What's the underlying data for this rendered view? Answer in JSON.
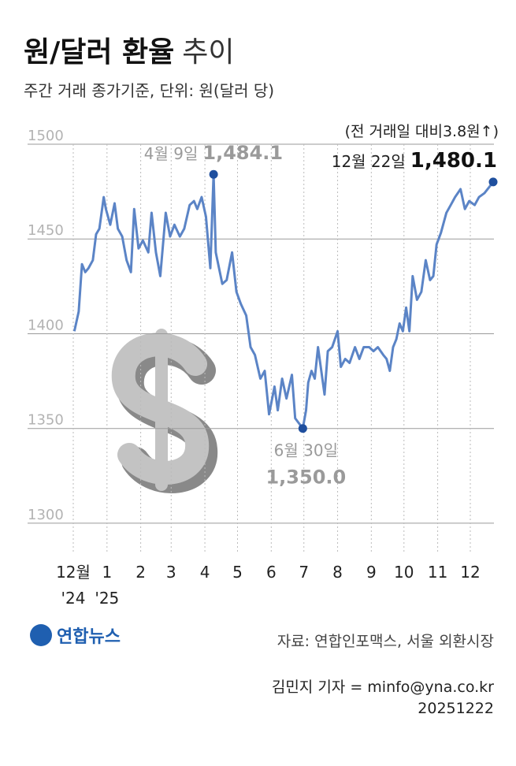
{
  "chart_data": {
    "type": "line",
    "title": {
      "main": "원/달러 환율",
      "suffix": "추이"
    },
    "subtitle": "주간 거래 종가기준, 단위: 원(달러 당)",
    "x": [
      1,
      5,
      8,
      11,
      14,
      18,
      21,
      24,
      28,
      30,
      34,
      38,
      41,
      45,
      49,
      53,
      56,
      60,
      64,
      69,
      72,
      76,
      80,
      85,
      89,
      93,
      98,
      102,
      107,
      111,
      114,
      118,
      122,
      126,
      129,
      131,
      134,
      137,
      141,
      146,
      150,
      154,
      159,
      163,
      167,
      172,
      176,
      180,
      185,
      188,
      192,
      196,
      201,
      204,
      211,
      214,
      216,
      219,
      222,
      225,
      228,
      231,
      234,
      238,
      243,
      246,
      250,
      254,
      259,
      263,
      267,
      272,
      276,
      280,
      285,
      288,
      291,
      294,
      297,
      300,
      303,
      306,
      309,
      312,
      316,
      320,
      324,
      328,
      331,
      334,
      338,
      343,
      347,
      351,
      356,
      360,
      364,
      369,
      373,
      378,
      382,
      386
    ],
    "series": [
      {
        "color": "#5b84c6",
        "values": [
          1401.3,
          1411.7,
          1436.7,
          1432.5,
          1434.6,
          1438.8,
          1452.5,
          1455.4,
          1472.1,
          1465.8,
          1457.5,
          1468.8,
          1455.4,
          1451.3,
          1438.8,
          1432.5,
          1465.8,
          1445,
          1449.2,
          1442.9,
          1463.8,
          1442.9,
          1430.4,
          1463.8,
          1451.3,
          1457.5,
          1451.3,
          1455.4,
          1467.9,
          1470,
          1465.8,
          1472.1,
          1461.7,
          1434.6,
          1484.1,
          1442.9,
          1434.6,
          1426.3,
          1428.3,
          1442.9,
          1422.1,
          1415.8,
          1409.6,
          1392.9,
          1388.8,
          1376.3,
          1380.4,
          1357.5,
          1372.1,
          1359.6,
          1376.3,
          1365.8,
          1378.3,
          1355.4,
          1350.0,
          1359.6,
          1374.2,
          1380.4,
          1376.3,
          1392.9,
          1380.4,
          1367.9,
          1390.8,
          1392.9,
          1401.3,
          1382.5,
          1386.7,
          1384.6,
          1392.9,
          1386.7,
          1392.9,
          1392.9,
          1390.8,
          1392.9,
          1388.8,
          1386.7,
          1380.4,
          1392.9,
          1397.1,
          1405.4,
          1401.3,
          1413.8,
          1401.3,
          1430.4,
          1417.9,
          1422.1,
          1438.8,
          1428.3,
          1430.4,
          1447.1,
          1453.3,
          1463.8,
          1467.9,
          1472.1,
          1476.3,
          1465.8,
          1470,
          1467.9,
          1472.1,
          1474.2,
          1477.1,
          1480.1
        ]
      }
    ],
    "xlim": [
      0,
      386
    ],
    "xticks": [
      {
        "value": 0,
        "label": "12월"
      },
      {
        "value": 31,
        "label": "1"
      },
      {
        "value": 62,
        "label": "2"
      },
      {
        "value": 90,
        "label": "3"
      },
      {
        "value": 121,
        "label": "4"
      },
      {
        "value": 151,
        "label": "5"
      },
      {
        "value": 182,
        "label": "6"
      },
      {
        "value": 212,
        "label": "7"
      },
      {
        "value": 243,
        "label": "8"
      },
      {
        "value": 274,
        "label": "9"
      },
      {
        "value": 304,
        "label": "10"
      },
      {
        "value": 335,
        "label": "11"
      },
      {
        "value": 365,
        "label": "12"
      }
    ],
    "x_year_labels": [
      {
        "value": 0,
        "label": "'24"
      },
      {
        "value": 31,
        "label": "'25"
      }
    ],
    "ylim": [
      1285,
      1500
    ],
    "yticks": [
      1300,
      1350,
      1400,
      1450,
      1500
    ],
    "grid": true,
    "marker_color": "#1f4f9e",
    "annotations": [
      {
        "x": 129,
        "value": 1484.1,
        "date": "4월 9일",
        "label": "1,484.1"
      },
      {
        "x": 211,
        "value": 1350.0,
        "date": "6월 30일",
        "label": "1,350.0"
      },
      {
        "x": 386,
        "value": 1480.1,
        "date": "12월 22일",
        "label": "1,480.1",
        "note": "(전 거래일 대비3.8원↑)"
      }
    ]
  },
  "footer": {
    "logo": "연합뉴스",
    "source": "자료: 연합인포맥스, 서울 외환시장",
    "credit": "김민지 기자 = minfo@yna.co.kr",
    "date": "20251222"
  }
}
